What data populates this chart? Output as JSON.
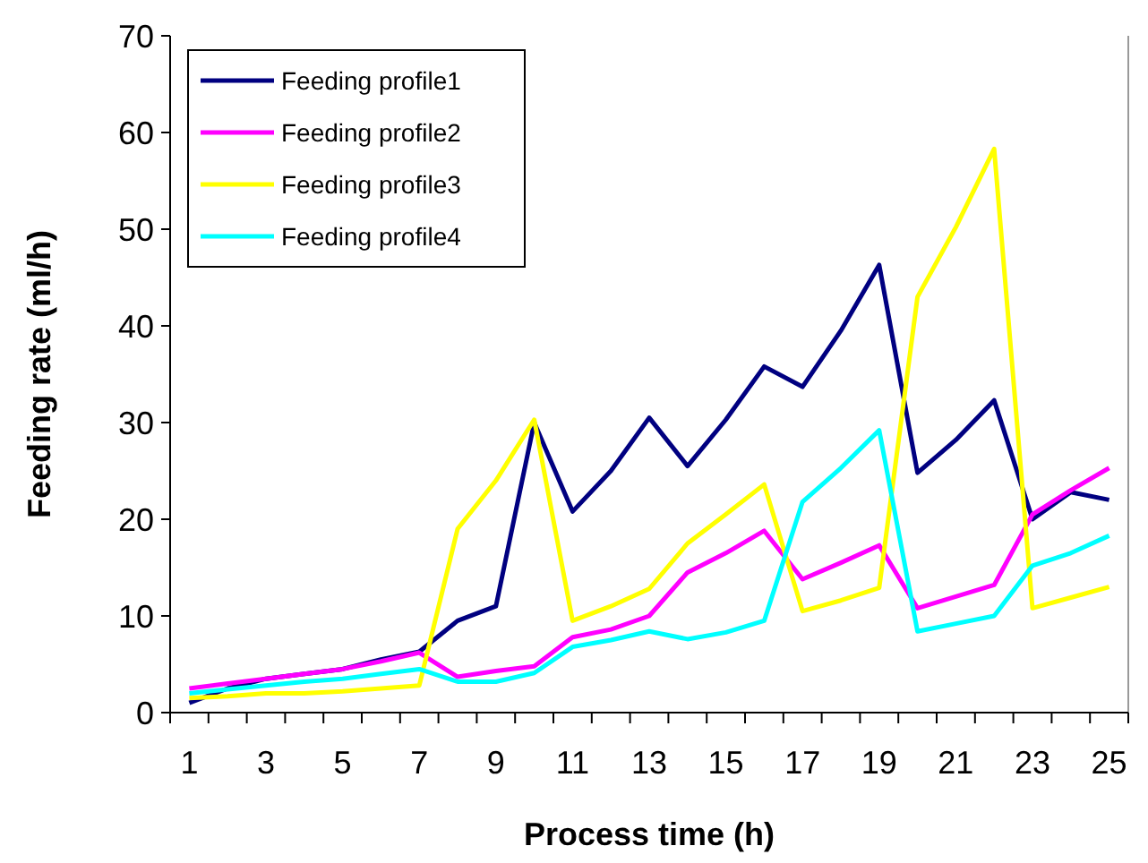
{
  "chart_data": {
    "type": "line",
    "xlabel": "Process time (h)",
    "ylabel": "Feeding rate (ml/h)",
    "categories": [
      "1",
      null,
      "3",
      null,
      "5",
      null,
      "7",
      null,
      "9",
      null,
      "11",
      null,
      "13",
      null,
      "15",
      null,
      "17",
      null,
      "19",
      null,
      "21",
      null,
      "23",
      null,
      "25"
    ],
    "ylim": [
      0,
      70
    ],
    "yticks": [
      0,
      10,
      20,
      30,
      40,
      50,
      60,
      70
    ],
    "grid": false,
    "legend": "top left",
    "marker": "none",
    "line_style": "solid",
    "series": [
      {
        "name": "Feeding profile1",
        "color": "#000080",
        "values": [
          1.0,
          2.5,
          3.5,
          4,
          4.5,
          5.5,
          6.3,
          9.5,
          11,
          30,
          20.8,
          25,
          30.5,
          25.5,
          30.3,
          35.8,
          33.7,
          39.5,
          46.3,
          24.8,
          28.2,
          32.3,
          20,
          22.8,
          22
        ]
      },
      {
        "name": "Feeding profile2",
        "color": "#ff00ff",
        "values": [
          2.5,
          3,
          3.5,
          4,
          4.5,
          5.3,
          6.2,
          3.7,
          4.3,
          4.8,
          7.8,
          8.6,
          10,
          14.5,
          16.5,
          18.8,
          13.8,
          15.5,
          17.3,
          10.8,
          12,
          13.2,
          20.5,
          23,
          25.3
        ]
      },
      {
        "name": "Feeding profile3",
        "color": "#ffff00",
        "values": [
          1.5,
          1.7,
          2,
          2,
          2.2,
          2.5,
          2.8,
          19,
          24,
          30.3,
          9.5,
          11,
          12.8,
          17.5,
          20.5,
          23.6,
          10.5,
          11.6,
          12.9,
          43,
          50.2,
          58.3,
          10.8,
          11.9,
          13
        ]
      },
      {
        "name": "Feeding profile4",
        "color": "#00ffff",
        "values": [
          2,
          2.4,
          2.8,
          3.2,
          3.5,
          4,
          4.5,
          3.2,
          3.2,
          4.1,
          6.8,
          7.5,
          8.4,
          7.6,
          8.3,
          9.5,
          21.8,
          25.3,
          29.2,
          8.4,
          9.2,
          10,
          15.2,
          16.5,
          18.3
        ]
      }
    ]
  }
}
